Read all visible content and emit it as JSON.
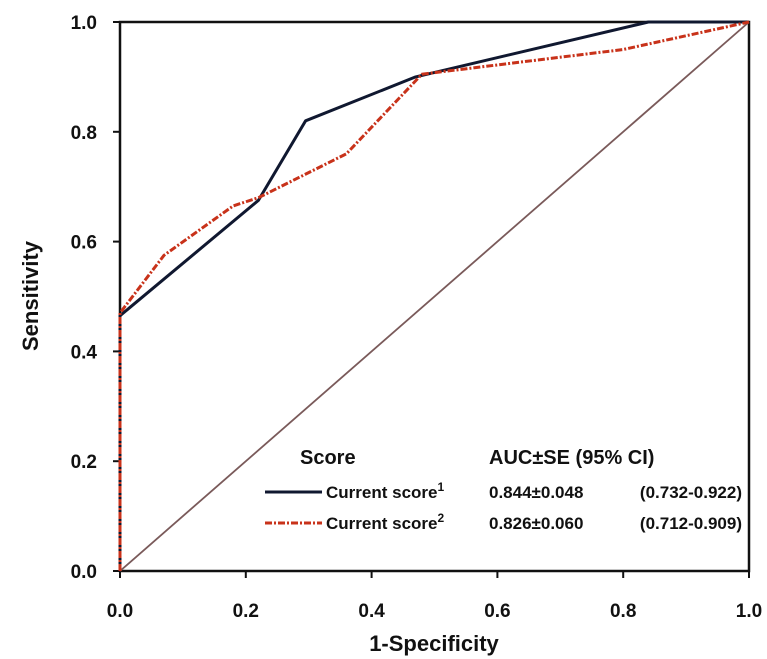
{
  "chart_data": {
    "type": "line",
    "xlabel": "1-Specificity",
    "ylabel": "Sensitivity",
    "xlim": [
      0,
      1
    ],
    "ylim": [
      0,
      1
    ],
    "xticks": [
      "0.0",
      "0.2",
      "0.4",
      "0.6",
      "0.8",
      "1.0"
    ],
    "yticks": [
      "0.0",
      "0.2",
      "0.4",
      "0.6",
      "0.8",
      "1.0"
    ],
    "grid": false,
    "legend": {
      "position": "bottom-right",
      "header_name": "Score",
      "header_value": "AUC±SE (95% CI)"
    },
    "series": [
      {
        "name": "Current score",
        "superscript": "1",
        "auc": "0.844±0.048",
        "ci": "(0.732-0.922)",
        "color": "#101830",
        "style": "solid",
        "points": [
          [
            0,
            0
          ],
          [
            0,
            0.465
          ],
          [
            0.22,
            0.675
          ],
          [
            0.295,
            0.82
          ],
          [
            0.47,
            0.9
          ],
          [
            0.84,
            1.0
          ],
          [
            1.0,
            1.0
          ]
        ]
      },
      {
        "name": "Current score",
        "superscript": "2",
        "auc": "0.826±0.060",
        "ci": "(0.712-0.909)",
        "color": "#c8321a",
        "style": "dash-dot",
        "points": [
          [
            0,
            0
          ],
          [
            0,
            0.47
          ],
          [
            0.07,
            0.575
          ],
          [
            0.18,
            0.665
          ],
          [
            0.22,
            0.68
          ],
          [
            0.36,
            0.76
          ],
          [
            0.48,
            0.905
          ],
          [
            0.8,
            0.95
          ],
          [
            1.0,
            1.0
          ]
        ]
      },
      {
        "name": "",
        "color": "#7a5a5a",
        "style": "solid-thin",
        "points": [
          [
            0,
            0
          ],
          [
            1,
            1
          ]
        ]
      }
    ]
  }
}
